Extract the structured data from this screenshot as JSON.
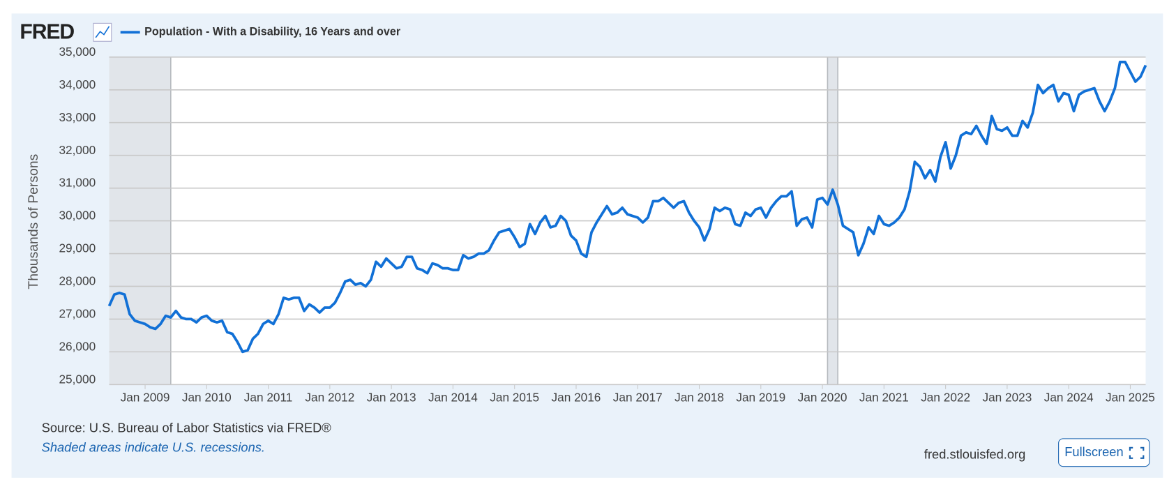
{
  "header": {
    "logo": "FRED"
  },
  "chart_data": {
    "type": "line",
    "ylabel": "Thousands of Persons",
    "x": [
      "2008-06",
      "2008-07",
      "2008-08",
      "2008-09",
      "2008-10",
      "2008-11",
      "2008-12",
      "2009-01",
      "2009-02",
      "2009-03",
      "2009-04",
      "2009-05",
      "2009-06",
      "2009-07",
      "2009-08",
      "2009-09",
      "2009-10",
      "2009-11",
      "2009-12",
      "2010-01",
      "2010-02",
      "2010-03",
      "2010-04",
      "2010-05",
      "2010-06",
      "2010-07",
      "2010-08",
      "2010-09",
      "2010-10",
      "2010-11",
      "2010-12",
      "2011-01",
      "2011-02",
      "2011-03",
      "2011-04",
      "2011-05",
      "2011-06",
      "2011-07",
      "2011-08",
      "2011-09",
      "2011-10",
      "2011-11",
      "2011-12",
      "2012-01",
      "2012-02",
      "2012-03",
      "2012-04",
      "2012-05",
      "2012-06",
      "2012-07",
      "2012-08",
      "2012-09",
      "2012-10",
      "2012-11",
      "2012-12",
      "2013-01",
      "2013-02",
      "2013-03",
      "2013-04",
      "2013-05",
      "2013-06",
      "2013-07",
      "2013-08",
      "2013-09",
      "2013-10",
      "2013-11",
      "2013-12",
      "2014-01",
      "2014-02",
      "2014-03",
      "2014-04",
      "2014-05",
      "2014-06",
      "2014-07",
      "2014-08",
      "2014-09",
      "2014-10",
      "2014-11",
      "2014-12",
      "2015-01",
      "2015-02",
      "2015-03",
      "2015-04",
      "2015-05",
      "2015-06",
      "2015-07",
      "2015-08",
      "2015-09",
      "2015-10",
      "2015-11",
      "2015-12",
      "2016-01",
      "2016-02",
      "2016-03",
      "2016-04",
      "2016-05",
      "2016-06",
      "2016-07",
      "2016-08",
      "2016-09",
      "2016-10",
      "2016-11",
      "2016-12",
      "2017-01",
      "2017-02",
      "2017-03",
      "2017-04",
      "2017-05",
      "2017-06",
      "2017-07",
      "2017-08",
      "2017-09",
      "2017-10",
      "2017-11",
      "2017-12",
      "2018-01",
      "2018-02",
      "2018-03",
      "2018-04",
      "2018-05",
      "2018-06",
      "2018-07",
      "2018-08",
      "2018-09",
      "2018-10",
      "2018-11",
      "2018-12",
      "2019-01",
      "2019-02",
      "2019-03",
      "2019-04",
      "2019-05",
      "2019-06",
      "2019-07",
      "2019-08",
      "2019-09",
      "2019-10",
      "2019-11",
      "2019-12",
      "2020-01",
      "2020-02",
      "2020-03",
      "2020-04",
      "2020-05",
      "2020-06",
      "2020-07",
      "2020-08",
      "2020-09",
      "2020-10",
      "2020-11",
      "2020-12",
      "2021-01",
      "2021-02",
      "2021-03",
      "2021-04",
      "2021-05",
      "2021-06",
      "2021-07",
      "2021-08",
      "2021-09",
      "2021-10",
      "2021-11",
      "2021-12",
      "2022-01",
      "2022-02",
      "2022-03",
      "2022-04",
      "2022-05",
      "2022-06",
      "2022-07",
      "2022-08",
      "2022-09",
      "2022-10",
      "2022-11",
      "2022-12",
      "2023-01",
      "2023-02",
      "2023-03",
      "2023-04",
      "2023-05",
      "2023-06",
      "2023-07",
      "2023-08",
      "2023-09",
      "2023-10",
      "2023-11",
      "2023-12",
      "2024-01",
      "2024-02",
      "2024-03",
      "2024-04",
      "2024-05",
      "2024-06",
      "2024-07",
      "2024-08",
      "2024-09",
      "2024-10",
      "2024-11",
      "2024-12",
      "2025-01",
      "2025-02",
      "2025-03",
      "2025-04"
    ],
    "series": [
      {
        "name": "Population - With a Disability, 16 Years and over",
        "color": "#1170d6",
        "values": [
          27400,
          27750,
          27800,
          27750,
          27150,
          26950,
          26900,
          26850,
          26750,
          26700,
          26850,
          27100,
          27050,
          27250,
          27050,
          27000,
          27000,
          26900,
          27050,
          27100,
          26950,
          26900,
          26950,
          26600,
          26550,
          26300,
          26000,
          26050,
          26400,
          26550,
          26850,
          26950,
          26850,
          27150,
          27650,
          27600,
          27650,
          27650,
          27250,
          27450,
          27350,
          27200,
          27350,
          27350,
          27500,
          27800,
          28150,
          28200,
          28050,
          28100,
          28000,
          28200,
          28750,
          28600,
          28850,
          28700,
          28550,
          28600,
          28900,
          28900,
          28550,
          28500,
          28400,
          28700,
          28650,
          28550,
          28550,
          28500,
          28500,
          28950,
          28850,
          28900,
          29000,
          29000,
          29100,
          29400,
          29650,
          29700,
          29750,
          29500,
          29200,
          29300,
          29900,
          29600,
          29950,
          30150,
          29800,
          29850,
          30150,
          30000,
          29550,
          29400,
          29000,
          28900,
          29650,
          29950,
          30200,
          30450,
          30200,
          30250,
          30400,
          30200,
          30150,
          30100,
          29950,
          30100,
          30600,
          30600,
          30700,
          30550,
          30400,
          30550,
          30600,
          30250,
          30000,
          29800,
          29400,
          29750,
          30400,
          30300,
          30400,
          30350,
          29900,
          29850,
          30250,
          30150,
          30350,
          30400,
          30100,
          30400,
          30600,
          30750,
          30750,
          30900,
          29850,
          30050,
          30100,
          29800,
          30650,
          30700,
          30500,
          30950,
          30500,
          29850,
          29750,
          29650,
          28950,
          29300,
          29800,
          29600,
          30150,
          29900,
          29850,
          29950,
          30100,
          30350,
          30900,
          31800,
          31650,
          31300,
          31550,
          31200,
          31950,
          32400,
          31600,
          32000,
          32600,
          32700,
          32650,
          32900,
          32600,
          32350,
          33200,
          32800,
          32750,
          32850,
          32600,
          32600,
          33050,
          32850,
          33300,
          34150,
          33900,
          34050,
          34150,
          33650,
          33900,
          33850,
          33350,
          33850,
          33950,
          34000,
          34050,
          33650,
          33350,
          33650,
          34050,
          34850,
          34850,
          34550,
          34250,
          34400,
          34750
        ]
      }
    ],
    "recessions": [
      [
        "2008-06",
        "2009-06"
      ],
      [
        "2020-02",
        "2020-04"
      ]
    ],
    "xlim": [
      "2008-06",
      "2025-04"
    ],
    "xticks": [
      {
        "value": "2009-01",
        "label": "Jan 2009"
      },
      {
        "value": "2010-01",
        "label": "Jan 2010"
      },
      {
        "value": "2011-01",
        "label": "Jan 2011"
      },
      {
        "value": "2012-01",
        "label": "Jan 2012"
      },
      {
        "value": "2013-01",
        "label": "Jan 2013"
      },
      {
        "value": "2014-01",
        "label": "Jan 2014"
      },
      {
        "value": "2015-01",
        "label": "Jan 2015"
      },
      {
        "value": "2016-01",
        "label": "Jan 2016"
      },
      {
        "value": "2017-01",
        "label": "Jan 2017"
      },
      {
        "value": "2018-01",
        "label": "Jan 2018"
      },
      {
        "value": "2019-01",
        "label": "Jan 2019"
      },
      {
        "value": "2020-01",
        "label": "Jan 2020"
      },
      {
        "value": "2021-01",
        "label": "Jan 2021"
      },
      {
        "value": "2022-01",
        "label": "Jan 2022"
      },
      {
        "value": "2023-01",
        "label": "Jan 2023"
      },
      {
        "value": "2024-01",
        "label": "Jan 2024"
      },
      {
        "value": "2025-01",
        "label": "Jan 2025"
      }
    ],
    "ylim": [
      25000,
      35000
    ],
    "yticks": [
      {
        "value": 25000,
        "label": "25,000"
      },
      {
        "value": 26000,
        "label": "26,000"
      },
      {
        "value": 27000,
        "label": "27,000"
      },
      {
        "value": 28000,
        "label": "28,000"
      },
      {
        "value": 29000,
        "label": "29,000"
      },
      {
        "value": 30000,
        "label": "30,000"
      },
      {
        "value": 31000,
        "label": "31,000"
      },
      {
        "value": 32000,
        "label": "32,000"
      },
      {
        "value": 33000,
        "label": "33,000"
      },
      {
        "value": 34000,
        "label": "34,000"
      },
      {
        "value": 35000,
        "label": "35,000"
      }
    ],
    "grid": true
  },
  "footer": {
    "source": "Source: U.S. Bureau of Labor Statistics via FRED®",
    "note": "Shaded areas indicate U.S. recessions.",
    "site": "fred.stlouisfed.org",
    "button": "Fullscreen"
  }
}
